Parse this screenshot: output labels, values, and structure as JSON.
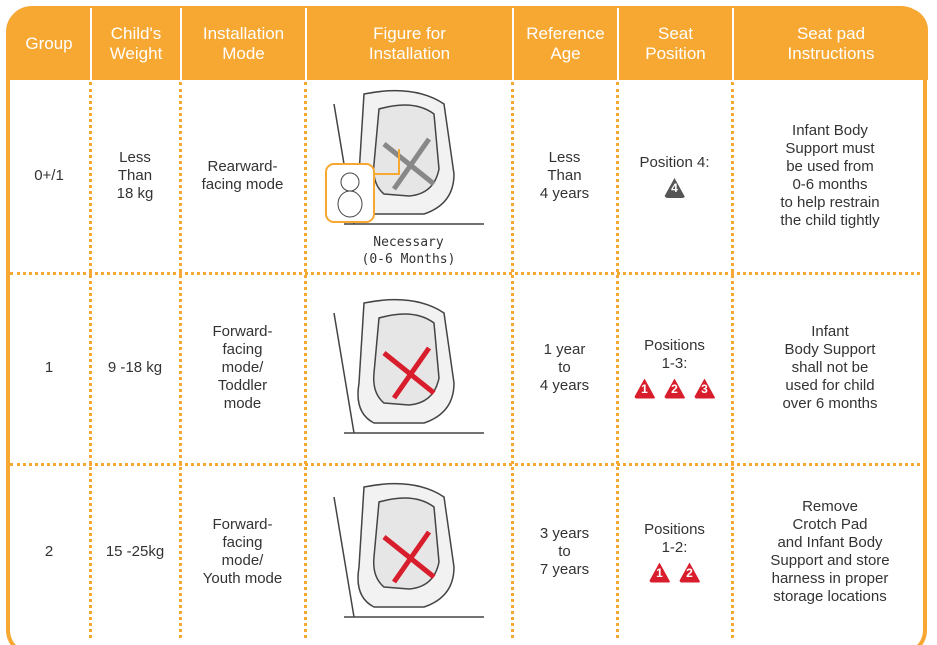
{
  "table": {
    "headers": [
      "Group",
      "Child's\nWeight",
      "Installation\nMode",
      "Figure for\nInstallation",
      "Reference\nAge",
      "Seat\nPosition",
      "Seat pad\nInstructions"
    ],
    "rows": [
      {
        "group": "0+/1",
        "weight": "Less\nThan\n18 kg",
        "mode": "Rearward-\nfacing mode",
        "figure_caption": "Necessary\n(0-6 Months)",
        "age": "Less\nThan\n4 years",
        "position": "Position 4:",
        "badges": [
          "4"
        ],
        "badge_color": "#555555",
        "instructions": "Infant Body\nSupport must\nbe used from\n0-6 months\nto help restrain\nthe child tightly"
      },
      {
        "group": "1",
        "weight": "9 -18 kg",
        "mode": "Forward-\nfacing\nmode/\nToddler\nmode",
        "age": "1 year\nto\n4 years",
        "position": "Positions\n1-3:",
        "badges": [
          "1",
          "2",
          "3"
        ],
        "badge_color": "#d81e2c",
        "instructions": "Infant\nBody Support\nshall not be\nused for child\nover 6 months"
      },
      {
        "group": "2",
        "weight": "15 -25kg",
        "mode": "Forward-\nfacing\nmode/\nYouth mode",
        "age": "3 years\nto\n7 years",
        "position": "Positions\n1-2:",
        "badges": [
          "1",
          "2"
        ],
        "badge_color": "#d81e2c",
        "instructions": "Remove\nCrotch Pad\nand Infant Body\nSupport and store\nharness in proper\nstorage locations"
      }
    ]
  }
}
